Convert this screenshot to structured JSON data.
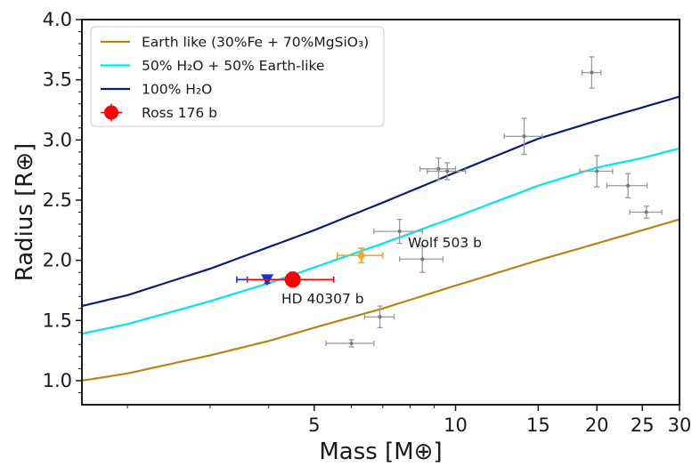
{
  "chart_data": {
    "type": "scatter",
    "xlabel": "Mass [M⊕]",
    "ylabel": "Radius [R⊕]",
    "x_scale": "log",
    "xlim": [
      1.6,
      30
    ],
    "ylim": [
      0.8,
      4.0
    ],
    "x_ticks": [
      5,
      10,
      15,
      20,
      25,
      30
    ],
    "y_ticks": [
      1.0,
      1.5,
      2.0,
      2.5,
      3.0,
      3.5,
      4.0
    ],
    "y_tick_labels": [
      "1.0",
      "1.5",
      "2.0",
      "2.5",
      "3.0",
      "3.5",
      "4.0"
    ],
    "grid": false,
    "legend_position": "top-left",
    "curves": [
      {
        "name": "Earth like (30%Fe + 70%MgSiO3)",
        "color": "#b8860b",
        "x": [
          1.6,
          2,
          3,
          4,
          5,
          7,
          10,
          15,
          20,
          25,
          30
        ],
        "y": [
          1.0,
          1.06,
          1.21,
          1.33,
          1.44,
          1.6,
          1.79,
          2.0,
          2.14,
          2.25,
          2.34
        ]
      },
      {
        "name": "50% H2O + 50% Earth-like",
        "color": "#00e5ee",
        "x": [
          1.6,
          2,
          3,
          4,
          5,
          7,
          10,
          15,
          20,
          25,
          30
        ],
        "y": [
          1.39,
          1.47,
          1.66,
          1.81,
          1.94,
          2.14,
          2.36,
          2.62,
          2.77,
          2.85,
          2.93
        ]
      },
      {
        "name": "100% H2O",
        "color": "#0a1f7a",
        "x": [
          1.6,
          2,
          3,
          4,
          5,
          7,
          10,
          15,
          20,
          25,
          30
        ],
        "y": [
          1.62,
          1.71,
          1.93,
          2.11,
          2.25,
          2.48,
          2.73,
          3.01,
          3.16,
          3.27,
          3.36
        ]
      }
    ],
    "background_planets": [
      {
        "x": 6.0,
        "xerr": 0.7,
        "y": 1.31,
        "yerr": 0.03
      },
      {
        "x": 6.9,
        "xerr": 0.5,
        "y": 1.53,
        "yerr": 0.09
      },
      {
        "x": 7.6,
        "xerr": 0.9,
        "y": 2.24,
        "yerr": 0.1
      },
      {
        "x": 8.5,
        "xerr": 0.9,
        "y": 2.01,
        "yerr": 0.11
      },
      {
        "x": 9.2,
        "xerr": 0.8,
        "y": 2.76,
        "yerr": 0.09
      },
      {
        "x": 9.6,
        "xerr": 0.9,
        "y": 2.74,
        "yerr": 0.07
      },
      {
        "x": 14.0,
        "xerr": 1.3,
        "y": 3.03,
        "yerr": 0.15
      },
      {
        "x": 19.5,
        "xerr": 0.9,
        "y": 3.56,
        "yerr": 0.13
      },
      {
        "x": 20.0,
        "xerr": 1.6,
        "y": 2.74,
        "yerr": 0.13
      },
      {
        "x": 23.3,
        "xerr": 2.3,
        "y": 2.62,
        "yerr": 0.1
      },
      {
        "x": 25.5,
        "xerr": 2.0,
        "y": 2.4,
        "yerr": 0.05
      }
    ],
    "highlighted_planets": [
      {
        "name": "Ross 176b",
        "label": "Ross 176 b",
        "x": 4.5,
        "xerr_low": 0.9,
        "xerr_high": 1.0,
        "y": 1.84,
        "yerr": 0.06,
        "color": "#ff0000",
        "marker": "circle",
        "in_legend": true
      },
      {
        "name": "HD 40307b",
        "label": "HD 40307 b",
        "x": 3.97,
        "xerr_low": 0.55,
        "xerr_high": 0.6,
        "y": 1.84,
        "yerr": 0.03,
        "color": "#1033d6",
        "marker": "triangle-down",
        "in_legend": false
      },
      {
        "name": "Wolf 503b",
        "label": "Wolf 503 b",
        "x": 6.3,
        "xerr_low": 0.7,
        "xerr_high": 0.7,
        "y": 2.04,
        "yerr": 0.06,
        "color": "#f5a623",
        "marker": "diamond",
        "in_legend": false
      }
    ],
    "legend": [
      {
        "label": "Earth like (30%Fe + 70%MgSiO₃)",
        "kind": "line",
        "series": 0
      },
      {
        "label": "50% H₂O + 50% Earth-like",
        "kind": "line",
        "series": 1
      },
      {
        "label": "100% H₂O",
        "kind": "line",
        "series": 2
      },
      {
        "label": "Ross 176 b",
        "kind": "point",
        "planet": 0
      }
    ],
    "error_color": "#999999"
  }
}
